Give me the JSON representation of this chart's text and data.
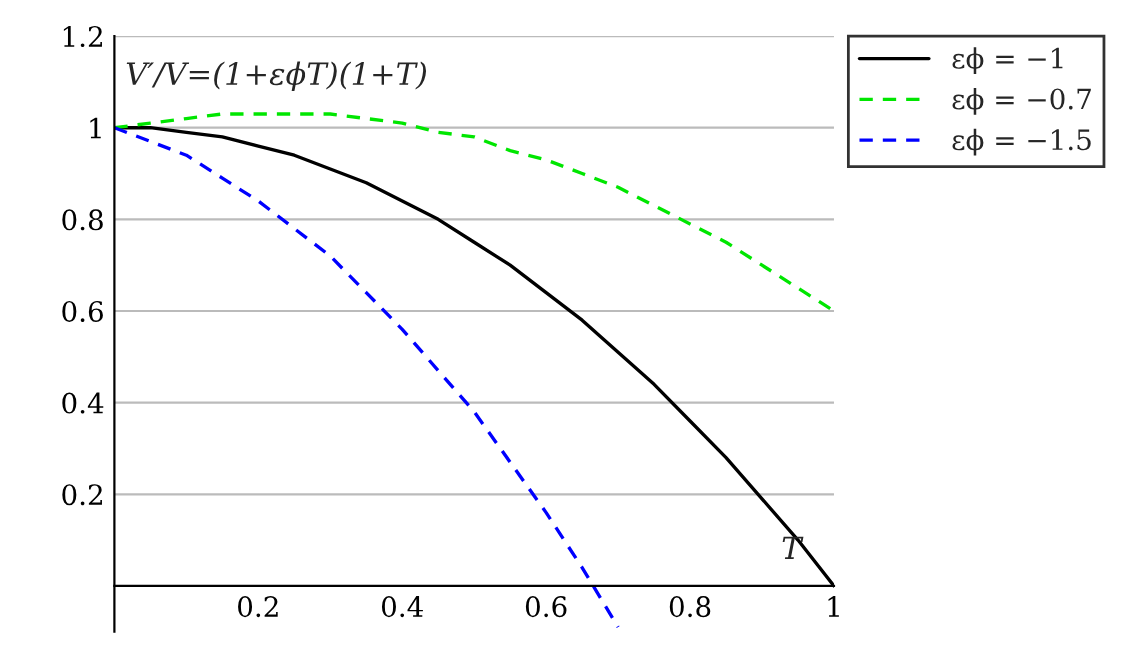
{
  "chart_data": {
    "type": "line",
    "xlabel": "T",
    "ylabel": "V′/V=(1+εϕT)(1+T)",
    "xlim": [
      0,
      1
    ],
    "ylim": [
      -0.1,
      1.2
    ],
    "xticks": [
      0.2,
      0.4,
      0.6,
      0.8,
      1
    ],
    "yticks": [
      0.2,
      0.4,
      0.6,
      0.8,
      1,
      1.2
    ],
    "grid": "y",
    "legend": "top right",
    "marker": "none",
    "series": [
      {
        "name": "εϕ = −1",
        "color": "#000000",
        "line_style": "solid",
        "x": [
          0,
          0.05,
          0.1,
          0.15,
          0.2,
          0.25,
          0.3,
          0.35,
          0.4,
          0.45,
          0.5,
          0.55,
          0.6,
          0.65,
          0.7,
          0.75,
          0.8,
          0.85,
          0.9,
          0.95,
          1
        ],
        "values": [
          1,
          1.0,
          0.99,
          0.98,
          0.96,
          0.94,
          0.91,
          0.88,
          0.84,
          0.8,
          0.75,
          0.7,
          0.64,
          0.58,
          0.51,
          0.44,
          0.36,
          0.28,
          0.19,
          0.1,
          0
        ]
      },
      {
        "name": "εϕ = −0.7",
        "color": "#00e600",
        "line_style": "dashed",
        "x": [
          0,
          0.05,
          0.1,
          0.15,
          0.2,
          0.25,
          0.3,
          0.35,
          0.4,
          0.45,
          0.5,
          0.55,
          0.6,
          0.65,
          0.7,
          0.75,
          0.8,
          0.85,
          0.9,
          0.95,
          1
        ],
        "values": [
          1,
          1.01,
          1.02,
          1.03,
          1.03,
          1.03,
          1.03,
          1.02,
          1.01,
          0.99,
          0.98,
          0.95,
          0.93,
          0.9,
          0.87,
          0.83,
          0.79,
          0.75,
          0.7,
          0.65,
          0.6
        ]
      },
      {
        "name": "εϕ = −1.5",
        "color": "#0000ff",
        "line_style": "dashed",
        "x": [
          0,
          0.05,
          0.1,
          0.15,
          0.2,
          0.25,
          0.3,
          0.35,
          0.4,
          0.45,
          0.5,
          0.55,
          0.6,
          0.65,
          0.7
        ],
        "values": [
          1,
          0.97,
          0.94,
          0.89,
          0.84,
          0.78,
          0.72,
          0.64,
          0.56,
          0.47,
          0.38,
          0.27,
          0.16,
          0.04,
          -0.09
        ]
      }
    ]
  }
}
